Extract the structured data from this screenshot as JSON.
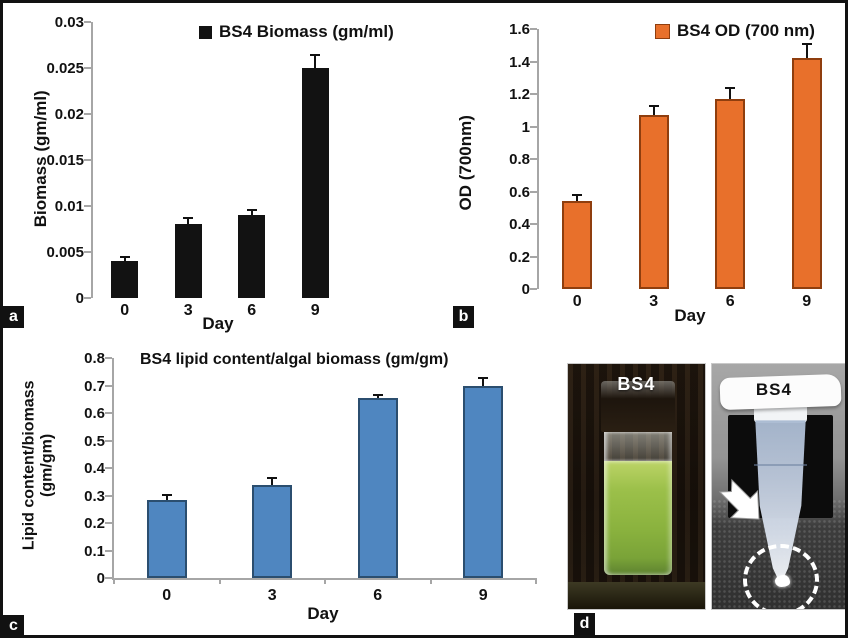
{
  "figure": {
    "panel_labels": {
      "a": "a",
      "b": "b",
      "c": "c",
      "d": "d"
    }
  },
  "chart_data": [
    {
      "type": "bar",
      "panel": "a",
      "legend": "BS4 Biomass (gm/ml)",
      "categories": [
        "0",
        "3",
        "6",
        "9"
      ],
      "values": [
        0.004,
        0.008,
        0.009,
        0.025
      ],
      "errors": [
        0.0003,
        0.0006,
        0.0005,
        0.0013
      ],
      "xlabel": "Day",
      "ylabel": "Biomass (gm/ml)",
      "ylim": [
        0,
        0.03
      ],
      "yticks": [
        "0",
        "0.005",
        "0.01",
        "0.015",
        "0.02",
        "0.025",
        "0.03"
      ],
      "grid": "off",
      "legend_position": "top-inside",
      "bar_color": "#121212",
      "bar_border": "#121212",
      "error_color": "#111111"
    },
    {
      "type": "bar",
      "panel": "b",
      "legend": "BS4 OD (700 nm)",
      "categories": [
        "0",
        "3",
        "6",
        "9"
      ],
      "values": [
        0.54,
        1.07,
        1.17,
        1.42
      ],
      "errors": [
        0.03,
        0.05,
        0.06,
        0.08
      ],
      "xlabel": "Day",
      "ylabel": "OD (700nm)",
      "ylim": [
        0,
        1.6
      ],
      "yticks": [
        "0",
        "0.2",
        "0.4",
        "0.6",
        "0.8",
        "1",
        "1.2",
        "1.4",
        "1.6"
      ],
      "grid": "off",
      "legend_position": "top-inside",
      "bar_color": "#e8702b",
      "bar_border": "#8f3e0e",
      "error_color": "#111111"
    },
    {
      "type": "bar",
      "panel": "c",
      "title": "BS4 lipid content/algal biomass (gm/gm)",
      "categories": [
        "0",
        "3",
        "6",
        "9"
      ],
      "values": [
        0.285,
        0.34,
        0.655,
        0.7
      ],
      "errors": [
        0.012,
        0.02,
        0.007,
        0.022
      ],
      "xlabel": "Day",
      "ylabel": "Lipid content/biomass\n(gm/gm)",
      "ylim": [
        0,
        0.8
      ],
      "yticks": [
        "0",
        "0.1",
        "0.2",
        "0.3",
        "0.4",
        "0.5",
        "0.6",
        "0.7",
        "0.8"
      ],
      "grid": "off",
      "legend_position": "none",
      "bar_color": "#4f86c0",
      "bar_border": "#2b4e6f",
      "error_color": "#111111"
    }
  ],
  "photos": {
    "left_vial_label": "BS4",
    "right_tube_label": "BS4"
  }
}
